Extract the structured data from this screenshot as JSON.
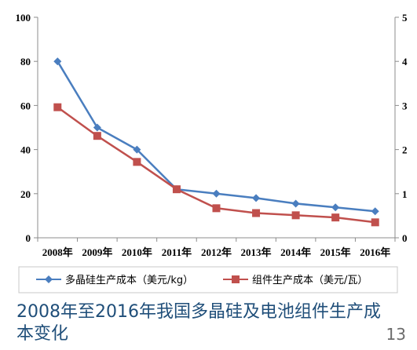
{
  "chart_data": {
    "type": "line",
    "categories": [
      "2008年",
      "2009年",
      "2010年",
      "2011年",
      "2012年",
      "2013年",
      "2014年",
      "2015年",
      "2016年"
    ],
    "series": [
      {
        "name": "多晶硅生产成本（美元/kg）",
        "axis": "left",
        "color": "#4a7ebf",
        "marker": "diamond",
        "values": [
          80,
          50,
          40,
          22,
          20,
          18,
          15.5,
          13.8,
          12
        ]
      },
      {
        "name": "组件生产成本（美元/瓦）",
        "axis": "right",
        "color": "#c0504d",
        "marker": "square",
        "values": [
          2.96,
          2.31,
          1.72,
          1.1,
          0.67,
          0.56,
          0.51,
          0.46,
          0.35
        ]
      }
    ],
    "y_left": {
      "range": [
        0,
        100
      ],
      "ticks": [
        "0",
        "20",
        "40",
        "60",
        "80",
        "100"
      ]
    },
    "y_right": {
      "range": [
        0,
        5
      ],
      "ticks": [
        "0",
        "1",
        "2",
        "3",
        "4",
        "5"
      ]
    },
    "grid": false,
    "legend_position": "bottom"
  },
  "caption": "2008年至2016年我国多晶硅及电池组件生产成本变化",
  "page_number": "13"
}
